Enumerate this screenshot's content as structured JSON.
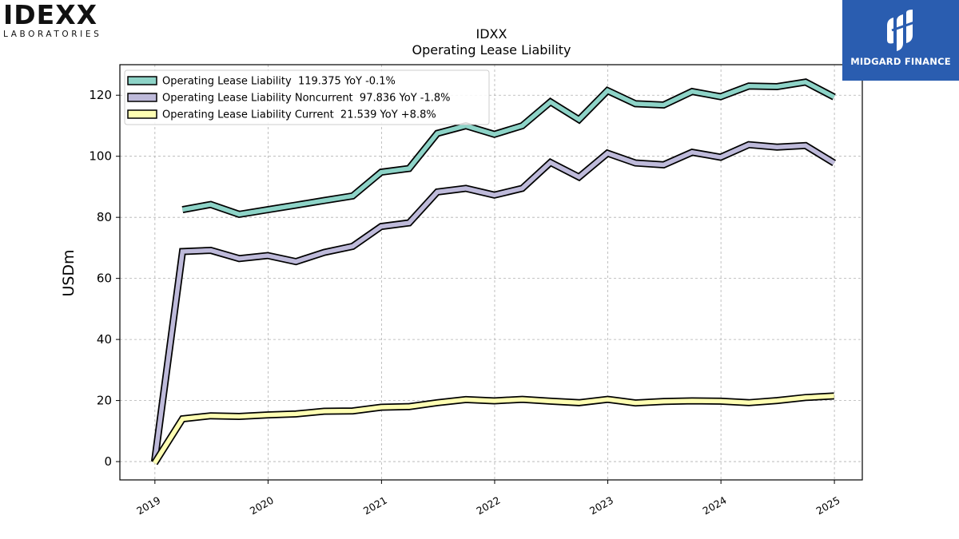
{
  "brand_left": {
    "wordmark": "IDEXX",
    "tagline": "LABORATORIES",
    "icon": "idexx-logo"
  },
  "brand_right": {
    "name": "MIDGARD FINANCE",
    "icon": "midgard-finance-logo",
    "background": "#2a5db0"
  },
  "chart_data": {
    "type": "line",
    "title": "IDXX",
    "subtitle": "Operating Lease Liability",
    "ylabel": "USDm",
    "xlabel": "",
    "ylim": [
      -6,
      130
    ],
    "xlim": [
      "2018-09-10",
      "2025-04-01"
    ],
    "x_tick_labels": [
      "2019",
      "2020",
      "2021",
      "2022",
      "2023",
      "2024",
      "2025"
    ],
    "y_ticks": [
      0,
      20,
      40,
      60,
      80,
      100,
      120
    ],
    "grid": true,
    "legend_position": "top-left",
    "series": [
      {
        "name": "Operating Lease Liability",
        "legend": "Operating Lease Liability  119.375 YoY -0.1%",
        "color": "#8dd3c7",
        "x": [
          "2019-03-31",
          "2019-06-30",
          "2019-09-30",
          "2019-12-31",
          "2020-03-31",
          "2020-06-30",
          "2020-09-30",
          "2020-12-31",
          "2021-03-31",
          "2021-06-30",
          "2021-09-30",
          "2021-12-31",
          "2022-03-31",
          "2022-06-30",
          "2022-09-30",
          "2022-12-31",
          "2023-03-31",
          "2023-06-30",
          "2023-09-30",
          "2023-12-31",
          "2024-03-31",
          "2024-06-30",
          "2024-09-30",
          "2024-12-31"
        ],
        "values": [
          82.5,
          84.2,
          81.0,
          82.5,
          84.0,
          85.5,
          87.0,
          94.8,
          96.0,
          107.5,
          110.0,
          107.2,
          110.0,
          117.8,
          112.0,
          121.5,
          117.2,
          116.8,
          121.2,
          119.5,
          123.0,
          122.8,
          124.3,
          119.4
        ]
      },
      {
        "name": "Operating Lease Liability Noncurrent",
        "legend": "Operating Lease Liability Noncurrent  97.836 YoY -1.8%",
        "color": "#bebada",
        "x": [
          "2018-12-31",
          "2019-03-31",
          "2019-06-30",
          "2019-09-30",
          "2019-12-31",
          "2020-03-31",
          "2020-06-30",
          "2020-09-30",
          "2020-12-31",
          "2021-03-31",
          "2021-06-30",
          "2021-09-30",
          "2021-12-31",
          "2022-03-31",
          "2022-06-30",
          "2022-09-30",
          "2022-12-31",
          "2023-03-31",
          "2023-06-30",
          "2023-09-30",
          "2023-12-31",
          "2024-03-31",
          "2024-06-30",
          "2024-09-30",
          "2024-12-31"
        ],
        "values": [
          0,
          68.8,
          69.2,
          66.5,
          67.5,
          65.5,
          68.5,
          70.5,
          77.0,
          78.2,
          88.3,
          89.5,
          87.3,
          89.5,
          98.0,
          93.2,
          101.0,
          97.8,
          97.2,
          101.3,
          99.7,
          103.8,
          103.0,
          103.5,
          97.8
        ]
      },
      {
        "name": "Operating Lease Liability Current",
        "legend": "Operating Lease Liability Current  21.539 YoY +8.8%",
        "color": "#ffffb3",
        "x": [
          "2018-12-31",
          "2019-03-31",
          "2019-06-30",
          "2019-09-30",
          "2019-12-31",
          "2020-03-31",
          "2020-06-30",
          "2020-09-30",
          "2020-12-31",
          "2021-03-31",
          "2021-06-30",
          "2021-09-30",
          "2021-12-31",
          "2022-03-31",
          "2022-06-30",
          "2022-09-30",
          "2022-12-31",
          "2023-03-31",
          "2023-06-30",
          "2023-09-30",
          "2023-12-31",
          "2024-03-31",
          "2024-06-30",
          "2024-09-30",
          "2024-12-31"
        ],
        "values": [
          -0.5,
          14.0,
          15.0,
          14.8,
          15.3,
          15.6,
          16.5,
          16.6,
          17.8,
          18.0,
          19.3,
          20.3,
          19.9,
          20.4,
          19.8,
          19.3,
          20.4,
          19.2,
          19.7,
          19.9,
          19.8,
          19.3,
          20.0,
          21.0,
          21.5
        ]
      }
    ]
  }
}
